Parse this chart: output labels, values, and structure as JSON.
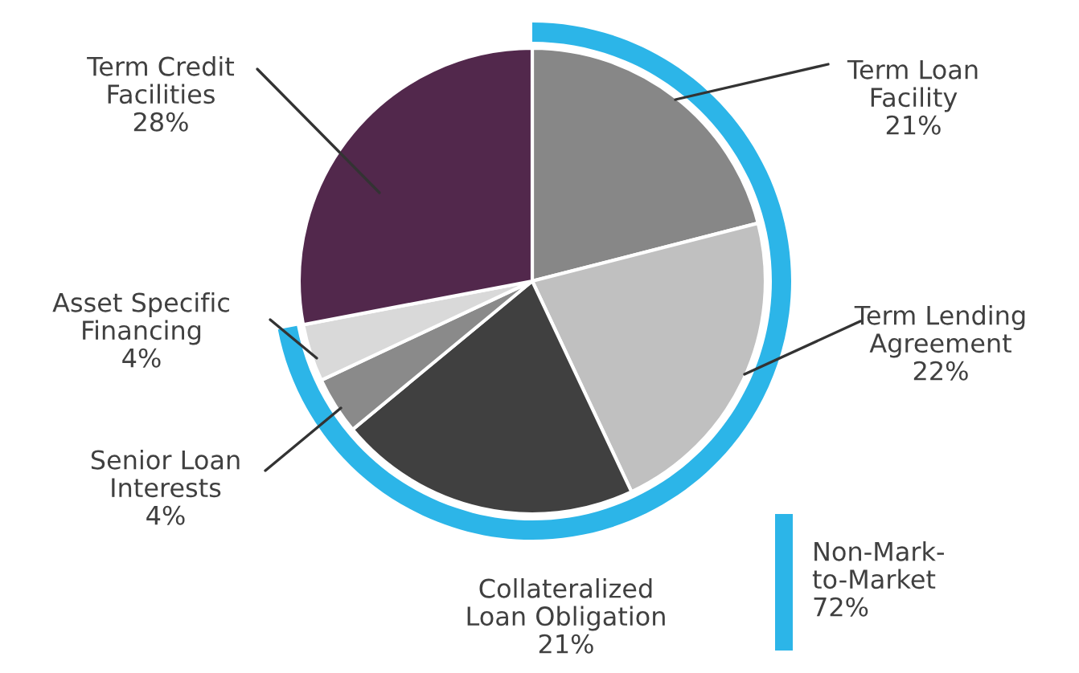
{
  "chart_data": {
    "type": "pie",
    "categories": [
      "Term Loan Facility",
      "Term Lending Agreement",
      "Collateralized Loan Obligation",
      "Senior Loan Interests",
      "Asset Specific Financing",
      "Term Credit Facilities"
    ],
    "values": [
      21,
      22,
      21,
      4,
      4,
      28
    ],
    "value_labels": [
      "21%",
      "22%",
      "21%",
      "4%",
      "4%",
      "28%"
    ],
    "colors": [
      "#878787",
      "#c0c0c0",
      "#404040",
      "#8a8a8a",
      "#d9d9d9",
      "#52284c"
    ],
    "annotations": [
      "Non-Mark-to-Market 72%"
    ]
  }
}
